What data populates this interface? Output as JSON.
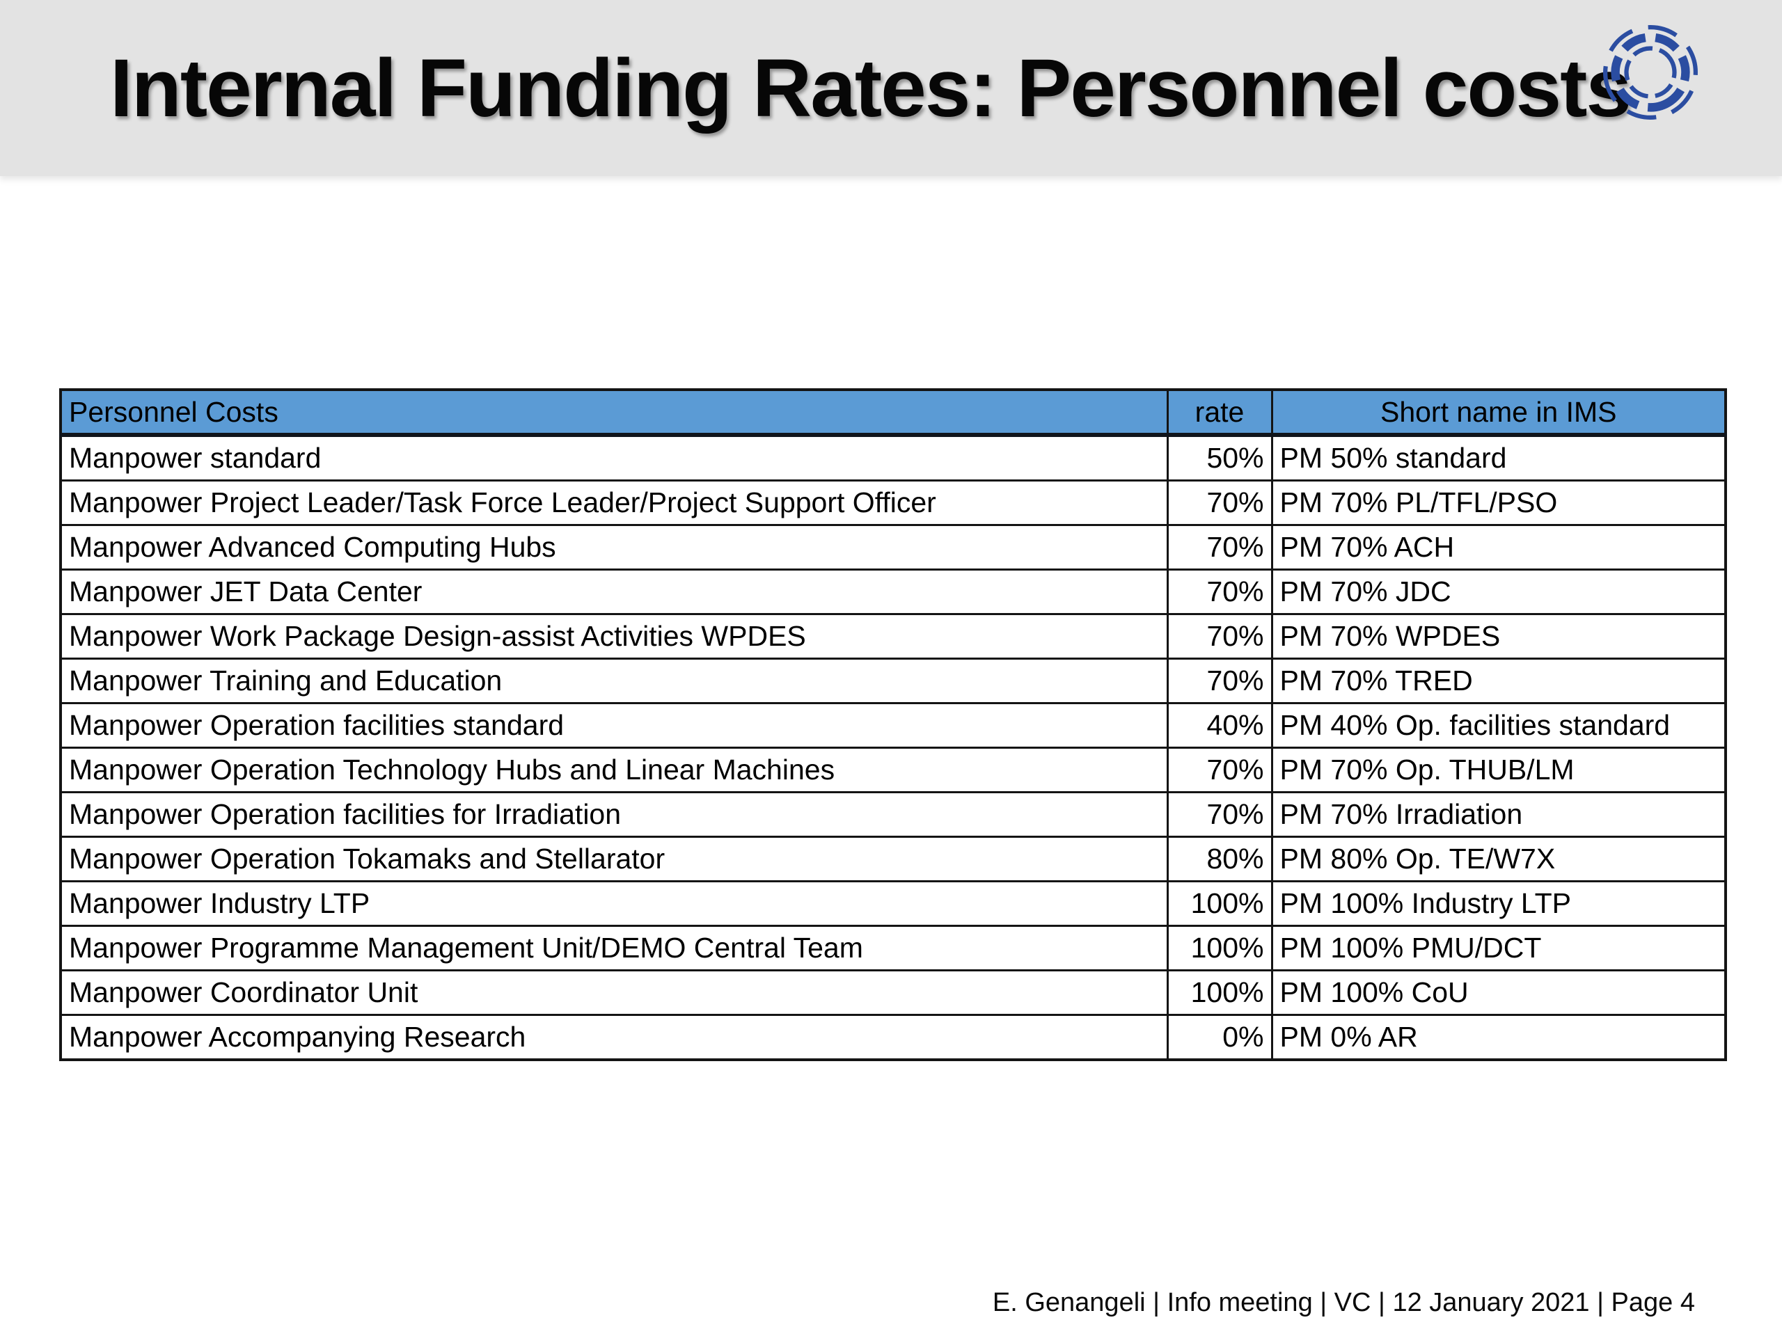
{
  "slide": {
    "title": "Internal Funding Rates: Personnel costs",
    "footer": "E. Genangeli | Info meeting | VC | 12 January 2021 | Page 4"
  },
  "colors": {
    "header_band_bg": "#e3e3e3",
    "table_header_bg": "#5b9bd5",
    "table_border": "#141414",
    "logo_blue": "#2b4da1",
    "title_text": "#070707"
  },
  "logo": {
    "name": "eurofusion-logo"
  },
  "table": {
    "columns": [
      {
        "label": "Personnel Costs",
        "align": "left"
      },
      {
        "label": "rate",
        "align": "center"
      },
      {
        "label": "Short name in IMS",
        "align": "center"
      }
    ],
    "rows": [
      {
        "name": "Manpower standard",
        "rate": "50%",
        "short": "PM 50% standard"
      },
      {
        "name": "Manpower Project Leader/Task Force Leader/Project Support Officer",
        "rate": "70%",
        "short": "PM 70% PL/TFL/PSO"
      },
      {
        "name": "Manpower Advanced Computing Hubs",
        "rate": "70%",
        "short": "PM 70% ACH"
      },
      {
        "name": "Manpower JET Data Center",
        "rate": "70%",
        "short": "PM 70% JDC"
      },
      {
        "name": "Manpower  Work Package Design-assist Activities WPDES",
        "rate": "70%",
        "short": "PM 70% WPDES"
      },
      {
        "name": "Manpower Training and Education",
        "rate": "70%",
        "short": "PM 70% TRED"
      },
      {
        "name": "Manpower Operation facilities standard",
        "rate": "40%",
        "short": "PM 40% Op. facilities standard"
      },
      {
        "name": "Manpower Operation Technology Hubs and Linear Machines",
        "rate": "70%",
        "short": "PM 70% Op. THUB/LM"
      },
      {
        "name": "Manpower Operation facilities for Irradiation",
        "rate": "70%",
        "short": "PM 70% Irradiation"
      },
      {
        "name": "Manpower Operation Tokamaks and Stellarator",
        "rate": "80%",
        "short": "PM 80% Op. TE/W7X"
      },
      {
        "name": "Manpower Industry LTP",
        "rate": "100%",
        "short": "PM 100% Industry LTP"
      },
      {
        "name": "Manpower Programme Management Unit/DEMO Central Team",
        "rate": "100%",
        "short": "PM 100% PMU/DCT"
      },
      {
        "name": "Manpower Coordinator Unit",
        "rate": "100%",
        "short": "PM 100% CoU"
      },
      {
        "name": "Manpower Accompanying Research",
        "rate": "0%",
        "short": "PM 0% AR"
      }
    ]
  }
}
